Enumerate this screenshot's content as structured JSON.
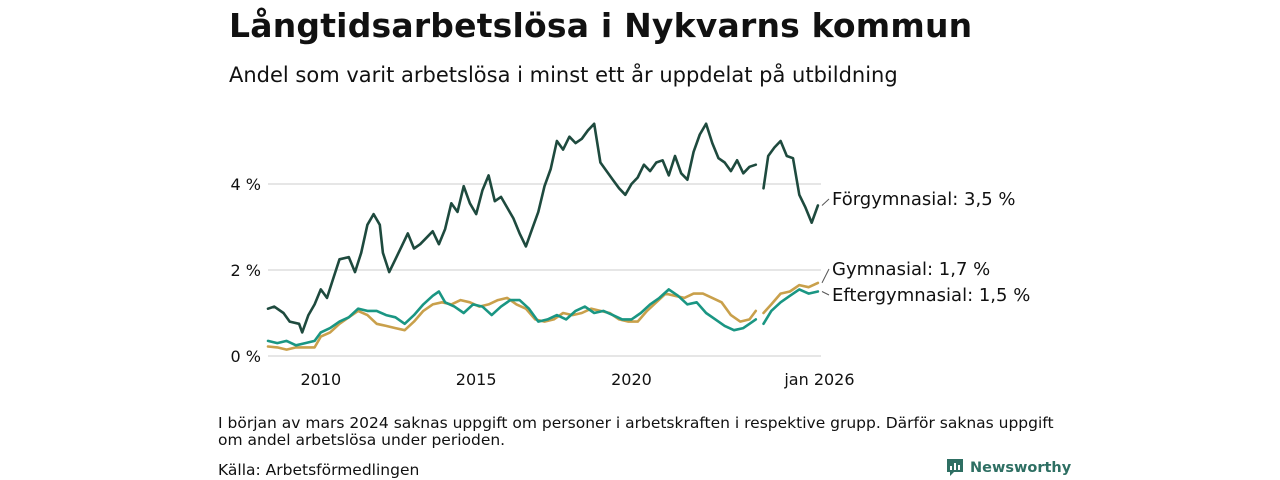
{
  "header": {
    "title": "Långtidsarbetslösa i Nykvarns kommun",
    "subtitle": "Andel som varit arbetslösa i minst ett år uppdelat på utbildning"
  },
  "footer": {
    "note": "I början av mars 2024 saknas uppgift om personer i arbetskraften i respektive grupp. Därför saknas uppgift om andel arbetslösa under perioden.",
    "source": "Källa: Arbetsförmedlingen",
    "brand": "Newsworthy"
  },
  "colors": {
    "forgymnasial": "#1e4a3e",
    "gymnasial": "#c9a04b",
    "eftergymnasial": "#1a9683",
    "grid": "#dddddd",
    "brand": "#2e6f63"
  },
  "chart_data": {
    "type": "line",
    "x_unit": "year (decimal)",
    "y_unit": "percent",
    "xlim": [
      2008.3,
      2026.1
    ],
    "ylim": [
      0,
      6
    ],
    "yticks": [
      {
        "value": 0,
        "label": "0 %"
      },
      {
        "value": 2,
        "label": "2 %"
      },
      {
        "value": 4,
        "label": "4 %"
      }
    ],
    "xticks": [
      {
        "value": 2010,
        "label": "2010"
      },
      {
        "value": 2015,
        "label": "2015"
      },
      {
        "value": 2020,
        "label": "2020"
      },
      {
        "value": 2026.05,
        "label": "jan 2026"
      }
    ],
    "series": [
      {
        "name": "Förgymnasial",
        "label": "Förgymnasial: 3,5 %",
        "color_key": "forgymnasial",
        "points": [
          [
            2008.3,
            1.1
          ],
          [
            2008.5,
            1.15
          ],
          [
            2008.8,
            1.0
          ],
          [
            2009.0,
            0.8
          ],
          [
            2009.3,
            0.75
          ],
          [
            2009.4,
            0.55
          ],
          [
            2009.6,
            0.95
          ],
          [
            2009.8,
            1.2
          ],
          [
            2010.0,
            1.55
          ],
          [
            2010.2,
            1.35
          ],
          [
            2010.4,
            1.8
          ],
          [
            2010.6,
            2.25
          ],
          [
            2010.9,
            2.3
          ],
          [
            2011.1,
            1.95
          ],
          [
            2011.3,
            2.4
          ],
          [
            2011.5,
            3.05
          ],
          [
            2011.7,
            3.3
          ],
          [
            2011.9,
            3.05
          ],
          [
            2012.0,
            2.4
          ],
          [
            2012.2,
            1.95
          ],
          [
            2012.4,
            2.25
          ],
          [
            2012.6,
            2.55
          ],
          [
            2012.8,
            2.85
          ],
          [
            2013.0,
            2.5
          ],
          [
            2013.2,
            2.6
          ],
          [
            2013.4,
            2.75
          ],
          [
            2013.6,
            2.9
          ],
          [
            2013.8,
            2.6
          ],
          [
            2014.0,
            2.95
          ],
          [
            2014.2,
            3.55
          ],
          [
            2014.4,
            3.35
          ],
          [
            2014.6,
            3.95
          ],
          [
            2014.8,
            3.55
          ],
          [
            2015.0,
            3.3
          ],
          [
            2015.2,
            3.85
          ],
          [
            2015.4,
            4.2
          ],
          [
            2015.6,
            3.6
          ],
          [
            2015.8,
            3.7
          ],
          [
            2016.0,
            3.45
          ],
          [
            2016.2,
            3.2
          ],
          [
            2016.4,
            2.85
          ],
          [
            2016.6,
            2.55
          ],
          [
            2016.8,
            2.95
          ],
          [
            2017.0,
            3.35
          ],
          [
            2017.2,
            3.95
          ],
          [
            2017.4,
            4.35
          ],
          [
            2017.6,
            5.0
          ],
          [
            2017.8,
            4.8
          ],
          [
            2018.0,
            5.1
          ],
          [
            2018.2,
            4.95
          ],
          [
            2018.4,
            5.05
          ],
          [
            2018.6,
            5.25
          ],
          [
            2018.8,
            5.4
          ],
          [
            2019.0,
            4.5
          ],
          [
            2019.2,
            4.3
          ],
          [
            2019.4,
            4.1
          ],
          [
            2019.6,
            3.9
          ],
          [
            2019.8,
            3.75
          ],
          [
            2020.0,
            4.0
          ],
          [
            2020.2,
            4.15
          ],
          [
            2020.4,
            4.45
          ],
          [
            2020.6,
            4.3
          ],
          [
            2020.8,
            4.5
          ],
          [
            2021.0,
            4.55
          ],
          [
            2021.2,
            4.2
          ],
          [
            2021.4,
            4.65
          ],
          [
            2021.6,
            4.25
          ],
          [
            2021.8,
            4.1
          ],
          [
            2022.0,
            4.75
          ],
          [
            2022.2,
            5.15
          ],
          [
            2022.4,
            5.4
          ],
          [
            2022.6,
            4.95
          ],
          [
            2022.8,
            4.6
          ],
          [
            2023.0,
            4.5
          ],
          [
            2023.2,
            4.3
          ],
          [
            2023.4,
            4.55
          ],
          [
            2023.6,
            4.25
          ],
          [
            2023.8,
            4.4
          ],
          [
            2024.0,
            4.45
          ],
          null,
          [
            2024.25,
            3.9
          ],
          [
            2024.4,
            4.65
          ],
          [
            2024.6,
            4.85
          ],
          [
            2024.8,
            5.0
          ],
          [
            2025.0,
            4.65
          ],
          [
            2025.2,
            4.6
          ],
          [
            2025.4,
            3.75
          ],
          [
            2025.6,
            3.45
          ],
          [
            2025.8,
            3.1
          ],
          [
            2026.0,
            3.5
          ]
        ],
        "last_value": 3.5
      },
      {
        "name": "Gymnasial",
        "label": "Gymnasial: 1,7 %",
        "color_key": "gymnasial",
        "points": [
          [
            2008.3,
            0.22
          ],
          [
            2008.6,
            0.2
          ],
          [
            2008.9,
            0.15
          ],
          [
            2009.2,
            0.2
          ],
          [
            2009.5,
            0.2
          ],
          [
            2009.8,
            0.2
          ],
          [
            2010.0,
            0.45
          ],
          [
            2010.3,
            0.55
          ],
          [
            2010.6,
            0.75
          ],
          [
            2010.9,
            0.9
          ],
          [
            2011.2,
            1.05
          ],
          [
            2011.5,
            0.95
          ],
          [
            2011.8,
            0.75
          ],
          [
            2012.1,
            0.7
          ],
          [
            2012.4,
            0.65
          ],
          [
            2012.7,
            0.6
          ],
          [
            2013.0,
            0.8
          ],
          [
            2013.3,
            1.05
          ],
          [
            2013.6,
            1.2
          ],
          [
            2013.9,
            1.25
          ],
          [
            2014.2,
            1.2
          ],
          [
            2014.5,
            1.3
          ],
          [
            2014.8,
            1.25
          ],
          [
            2015.1,
            1.15
          ],
          [
            2015.4,
            1.2
          ],
          [
            2015.7,
            1.3
          ],
          [
            2016.0,
            1.35
          ],
          [
            2016.3,
            1.2
          ],
          [
            2016.6,
            1.1
          ],
          [
            2016.9,
            0.85
          ],
          [
            2017.2,
            0.8
          ],
          [
            2017.5,
            0.85
          ],
          [
            2017.8,
            1.0
          ],
          [
            2018.1,
            0.95
          ],
          [
            2018.4,
            1.0
          ],
          [
            2018.7,
            1.1
          ],
          [
            2019.0,
            1.05
          ],
          [
            2019.3,
            1.0
          ],
          [
            2019.6,
            0.85
          ],
          [
            2019.9,
            0.8
          ],
          [
            2020.2,
            0.8
          ],
          [
            2020.5,
            1.05
          ],
          [
            2020.8,
            1.25
          ],
          [
            2021.1,
            1.45
          ],
          [
            2021.4,
            1.4
          ],
          [
            2021.7,
            1.35
          ],
          [
            2022.0,
            1.45
          ],
          [
            2022.3,
            1.45
          ],
          [
            2022.6,
            1.35
          ],
          [
            2022.9,
            1.25
          ],
          [
            2023.2,
            0.95
          ],
          [
            2023.5,
            0.8
          ],
          [
            2023.8,
            0.85
          ],
          [
            2024.0,
            1.05
          ],
          null,
          [
            2024.25,
            1.0
          ],
          [
            2024.5,
            1.2
          ],
          [
            2024.8,
            1.45
          ],
          [
            2025.1,
            1.5
          ],
          [
            2025.4,
            1.65
          ],
          [
            2025.7,
            1.6
          ],
          [
            2026.0,
            1.7
          ]
        ],
        "last_value": 1.7
      },
      {
        "name": "Eftergymnasial",
        "label": "Eftergymnasial: 1,5 %",
        "color_key": "eftergymnasial",
        "points": [
          [
            2008.3,
            0.35
          ],
          [
            2008.6,
            0.3
          ],
          [
            2008.9,
            0.35
          ],
          [
            2009.2,
            0.25
          ],
          [
            2009.5,
            0.3
          ],
          [
            2009.8,
            0.35
          ],
          [
            2010.0,
            0.55
          ],
          [
            2010.3,
            0.65
          ],
          [
            2010.6,
            0.8
          ],
          [
            2010.9,
            0.9
          ],
          [
            2011.2,
            1.1
          ],
          [
            2011.5,
            1.05
          ],
          [
            2011.8,
            1.05
          ],
          [
            2012.1,
            0.95
          ],
          [
            2012.4,
            0.9
          ],
          [
            2012.7,
            0.75
          ],
          [
            2013.0,
            0.95
          ],
          [
            2013.3,
            1.2
          ],
          [
            2013.6,
            1.4
          ],
          [
            2013.8,
            1.5
          ],
          [
            2014.0,
            1.25
          ],
          [
            2014.3,
            1.15
          ],
          [
            2014.6,
            1.0
          ],
          [
            2014.9,
            1.2
          ],
          [
            2015.2,
            1.15
          ],
          [
            2015.5,
            0.95
          ],
          [
            2015.8,
            1.15
          ],
          [
            2016.1,
            1.3
          ],
          [
            2016.4,
            1.3
          ],
          [
            2016.7,
            1.1
          ],
          [
            2017.0,
            0.8
          ],
          [
            2017.3,
            0.85
          ],
          [
            2017.6,
            0.95
          ],
          [
            2017.9,
            0.85
          ],
          [
            2018.2,
            1.05
          ],
          [
            2018.5,
            1.15
          ],
          [
            2018.8,
            1.0
          ],
          [
            2019.1,
            1.05
          ],
          [
            2019.4,
            0.95
          ],
          [
            2019.7,
            0.85
          ],
          [
            2020.0,
            0.85
          ],
          [
            2020.3,
            1.0
          ],
          [
            2020.6,
            1.2
          ],
          [
            2020.9,
            1.35
          ],
          [
            2021.2,
            1.55
          ],
          [
            2021.5,
            1.4
          ],
          [
            2021.8,
            1.2
          ],
          [
            2022.1,
            1.25
          ],
          [
            2022.4,
            1.0
          ],
          [
            2022.7,
            0.85
          ],
          [
            2023.0,
            0.7
          ],
          [
            2023.3,
            0.6
          ],
          [
            2023.6,
            0.65
          ],
          [
            2023.8,
            0.75
          ],
          [
            2024.0,
            0.85
          ],
          null,
          [
            2024.25,
            0.75
          ],
          [
            2024.5,
            1.05
          ],
          [
            2024.8,
            1.25
          ],
          [
            2025.1,
            1.4
          ],
          [
            2025.4,
            1.55
          ],
          [
            2025.7,
            1.45
          ],
          [
            2026.0,
            1.5
          ]
        ],
        "last_value": 1.5
      }
    ]
  }
}
